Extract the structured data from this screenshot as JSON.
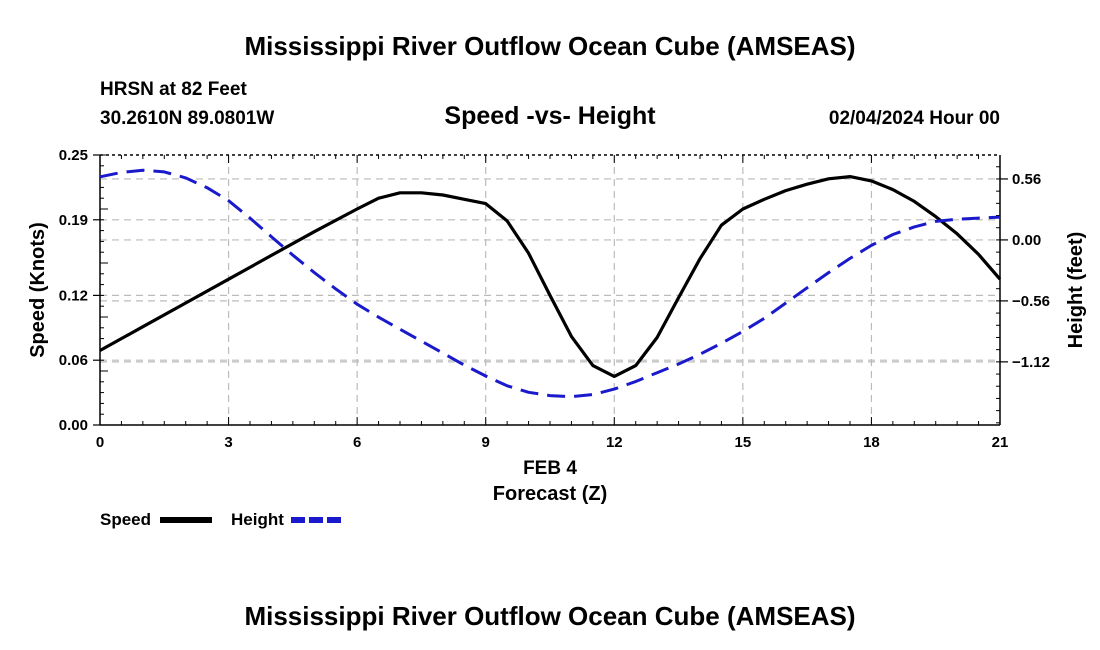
{
  "chart_data": {
    "type": "line",
    "title": "Mississippi River Outflow Ocean Cube (AMSEAS)",
    "subtitle": "Speed -vs- Height",
    "station": "HRSN at 82 Feet",
    "coords": "30.2610N  89.0801W",
    "date": "02/04/2024 Hour 00",
    "xlabel": "Forecast (Z)",
    "xsublabel": "FEB 4",
    "ylabel_left": "Speed (Knots)",
    "ylabel_right": "Height (feet)",
    "footer_title": "Mississippi River Outflow Ocean Cube (AMSEAS)",
    "xlim": [
      0,
      21
    ],
    "ylim_left": [
      0,
      0.25
    ],
    "ylim_right": [
      -1.7,
      0.78
    ],
    "xticks": [
      0,
      3,
      6,
      9,
      12,
      15,
      18,
      21
    ],
    "xtick_labels": [
      "0",
      "3",
      "6",
      "9",
      "12",
      "15",
      "18",
      "21"
    ],
    "yticks_left": [
      0.0,
      0.06,
      0.12,
      0.19,
      0.25
    ],
    "ytick_labels_left": [
      "0.00",
      "0.06",
      "0.12",
      "0.19",
      "0.25"
    ],
    "yticks_right": [
      0.56,
      0.0,
      -0.56,
      -1.12
    ],
    "ytick_labels_right": [
      "0.56",
      "0.00",
      "−0.56",
      "−1.12"
    ],
    "grid": true,
    "series": [
      {
        "name": "Speed",
        "axis": "left",
        "color": "#000000",
        "dashed": false,
        "x": [
          0,
          1,
          2,
          3,
          4,
          5,
          6,
          6.5,
          7,
          7.5,
          8,
          8.5,
          9,
          9.5,
          10,
          10.5,
          11,
          11.5,
          12,
          12.5,
          13,
          13.5,
          14,
          14.5,
          15,
          15.5,
          16,
          16.5,
          17,
          17.5,
          18,
          18.5,
          19,
          19.5,
          20,
          20.5,
          21
        ],
        "values": [
          0.069,
          0.091,
          0.113,
          0.135,
          0.157,
          0.179,
          0.2,
          0.21,
          0.215,
          0.215,
          0.213,
          0.209,
          0.205,
          0.189,
          0.159,
          0.12,
          0.082,
          0.055,
          0.045,
          0.055,
          0.081,
          0.118,
          0.154,
          0.185,
          0.2,
          0.209,
          0.217,
          0.223,
          0.228,
          0.23,
          0.226,
          0.218,
          0.207,
          0.193,
          0.177,
          0.158,
          0.135
        ]
      },
      {
        "name": "Height",
        "axis": "right",
        "color": "#1a1acc",
        "dashed": true,
        "x": [
          0,
          0.5,
          1,
          1.5,
          2,
          2.5,
          3,
          3.5,
          4,
          4.5,
          5,
          5.5,
          6,
          6.5,
          7,
          7.5,
          8,
          8.5,
          9,
          9.5,
          10,
          10.5,
          11,
          11.5,
          12,
          12.5,
          13,
          13.5,
          14,
          14.5,
          15,
          15.5,
          16,
          16.5,
          17,
          17.5,
          18,
          18.5,
          19,
          19.5,
          20,
          20.5,
          21
        ],
        "values": [
          0.58,
          0.62,
          0.64,
          0.625,
          0.57,
          0.48,
          0.36,
          0.2,
          0.03,
          -0.14,
          -0.3,
          -0.45,
          -0.59,
          -0.71,
          -0.82,
          -0.93,
          -1.04,
          -1.15,
          -1.25,
          -1.34,
          -1.4,
          -1.43,
          -1.44,
          -1.42,
          -1.37,
          -1.3,
          -1.22,
          -1.14,
          -1.05,
          -0.95,
          -0.84,
          -0.72,
          -0.58,
          -0.44,
          -0.3,
          -0.17,
          -0.05,
          0.05,
          0.12,
          0.17,
          0.19,
          0.2,
          0.21
        ]
      }
    ],
    "legend": [
      {
        "label": "Speed",
        "color": "#000000",
        "dashed": false
      },
      {
        "label": "Height",
        "color": "#1a1acc",
        "dashed": true
      }
    ]
  }
}
